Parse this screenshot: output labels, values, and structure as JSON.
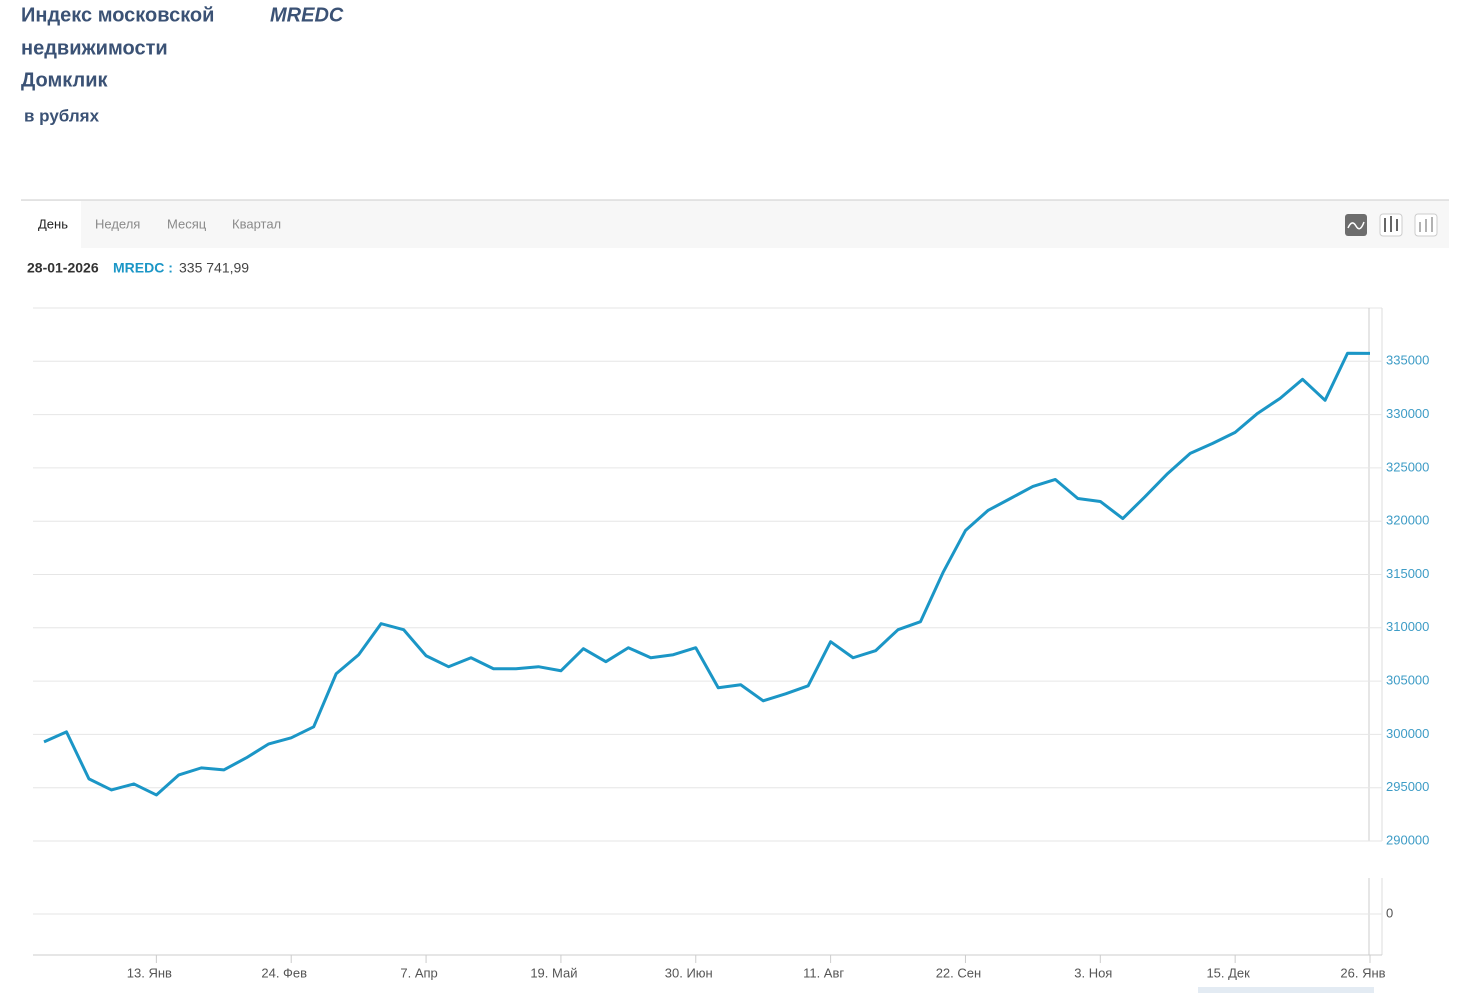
{
  "header": {
    "title_lines": [
      "Индекс московской",
      "недвижимости",
      "Домклик"
    ],
    "ticker": "MREDC",
    "subtitle": "в рублях"
  },
  "tabs": [
    "День",
    "Неделя",
    "Месяц",
    "Квартал"
  ],
  "tooltip": {
    "date": "28-01-2026",
    "label": "MREDC :",
    "value": "335 741,99"
  },
  "volume": {
    "yticks": [
      0
    ]
  },
  "chart_data": {
    "type": "line",
    "categories": [
      null,
      null,
      null,
      null,
      null,
      "13. Янв",
      null,
      null,
      null,
      null,
      null,
      "24. Фев",
      null,
      null,
      null,
      null,
      null,
      "7. Апр",
      null,
      null,
      null,
      null,
      null,
      "19. Май",
      null,
      null,
      null,
      null,
      null,
      "30. Июн",
      null,
      null,
      null,
      null,
      null,
      "11. Авг",
      null,
      null,
      null,
      null,
      null,
      "22. Сен",
      null,
      null,
      null,
      null,
      null,
      "3. Ноя",
      null,
      null,
      null,
      null,
      null,
      "15. Дек",
      null,
      null,
      null,
      null,
      null,
      "26. Янв"
    ],
    "series": [
      {
        "name": "MREDC",
        "color": "#1b96c6",
        "values": [
          299300,
          300240,
          295825,
          294790,
          295355,
          294320,
          296200,
          296860,
          296670,
          297800,
          299110,
          299680,
          300710,
          305690,
          307475,
          310390,
          309825,
          307380,
          306350,
          307190,
          306160,
          306160,
          306350,
          305970,
          308040,
          306820,
          308130,
          307190,
          307475,
          308130,
          304375,
          304655,
          303150,
          303810,
          304560,
          308695,
          307190,
          307850,
          309825,
          310575,
          315180,
          319125,
          321005,
          322130,
          323260,
          323915,
          322130,
          321850,
          320250,
          322320,
          324480,
          326360,
          327300,
          328335,
          330120,
          331525,
          333310,
          331340,
          335755,
          335741.99
        ]
      }
    ],
    "ylim": [
      290000,
      340000
    ],
    "yticks": [
      290000,
      295000,
      300000,
      305000,
      310000,
      315000,
      320000,
      325000,
      330000,
      335000
    ],
    "grid": true
  }
}
